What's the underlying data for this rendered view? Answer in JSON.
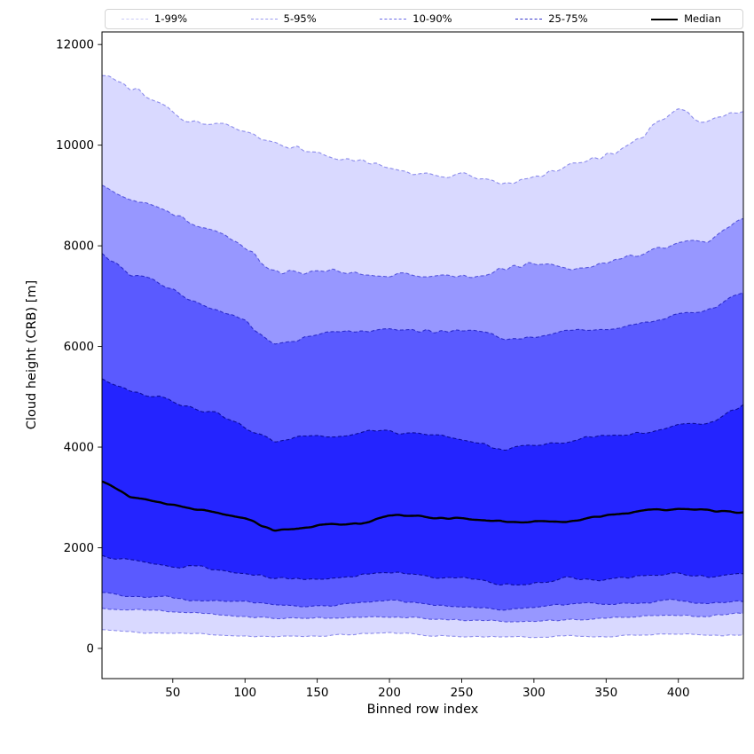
{
  "chart_data": {
    "type": "area",
    "title": "",
    "xlabel": "Binned row index",
    "ylabel": "Cloud height (CRB) [m]",
    "xlim": [
      1,
      445
    ],
    "ylim": [
      -600,
      12250
    ],
    "xticks": [
      50,
      100,
      150,
      200,
      250,
      300,
      350,
      400
    ],
    "yticks": [
      0,
      2000,
      4000,
      6000,
      8000,
      10000,
      12000
    ],
    "grid": false,
    "legend_position": "top",
    "legend": [
      {
        "label": "1-99%",
        "line_style": "dashed",
        "color": "#c9c9f6",
        "weight": 1.5
      },
      {
        "label": "5-95%",
        "line_style": "dashed",
        "color": "#9a9af0",
        "weight": 1.5
      },
      {
        "label": "10-90%",
        "line_style": "dashed",
        "color": "#6a6ae8",
        "weight": 1.5
      },
      {
        "label": "25-75%",
        "line_style": "dashed",
        "color": "#3434cc",
        "weight": 1.5
      },
      {
        "label": "Median",
        "line_style": "solid",
        "color": "#000000",
        "weight": 2.5
      }
    ],
    "band_fill_color": "#0000ff",
    "bands": [
      {
        "name": "1-99%",
        "lower": "p1",
        "upper": "p99",
        "fill_alpha": 0.15,
        "edge_color": "rgba(45,45,215,0.50)"
      },
      {
        "name": "5-95%",
        "lower": "p5",
        "upper": "p95",
        "fill_alpha": 0.3,
        "edge_color": "rgba(35,35,205,0.65)"
      },
      {
        "name": "10-90%",
        "lower": "p10",
        "upper": "p90",
        "fill_alpha": 0.4,
        "edge_color": "rgba(25,25,190,0.80)"
      },
      {
        "name": "25-75%",
        "lower": "p25",
        "upper": "p75",
        "fill_alpha": 0.6,
        "edge_color": "rgba(10,10,150,0.95)"
      }
    ],
    "median_color": "#000000",
    "x_control": [
      1,
      20,
      40,
      60,
      80,
      100,
      120,
      140,
      160,
      180,
      200,
      220,
      240,
      260,
      280,
      300,
      320,
      340,
      360,
      380,
      400,
      420,
      445
    ],
    "series": {
      "p99": [
        11500,
        11100,
        10850,
        10500,
        10450,
        10250,
        10000,
        9900,
        9800,
        9650,
        9550,
        9450,
        9400,
        9350,
        9300,
        9350,
        9500,
        9700,
        9950,
        10300,
        10700,
        10550,
        10650
      ],
      "p95": [
        9200,
        8900,
        8750,
        8500,
        8300,
        7950,
        7500,
        7400,
        7450,
        7400,
        7400,
        7450,
        7450,
        7400,
        7500,
        7600,
        7500,
        7550,
        7700,
        7900,
        8100,
        8100,
        8450
      ],
      "p90": [
        7850,
        7500,
        7350,
        7000,
        6800,
        6500,
        6100,
        6150,
        6250,
        6300,
        6350,
        6300,
        6250,
        6300,
        6150,
        6200,
        6250,
        6250,
        6300,
        6500,
        6700,
        6750,
        7050
      ],
      "p75": [
        5400,
        5150,
        5000,
        4800,
        4700,
        4400,
        4100,
        4200,
        4250,
        4300,
        4350,
        4300,
        4200,
        4100,
        4000,
        4050,
        4100,
        4200,
        4250,
        4300,
        4450,
        4500,
        4850
      ],
      "median": [
        3350,
        3000,
        2880,
        2780,
        2700,
        2600,
        2350,
        2400,
        2450,
        2450,
        2650,
        2650,
        2600,
        2550,
        2500,
        2500,
        2550,
        2600,
        2650,
        2750,
        2800,
        2750,
        2700
      ],
      "p25": [
        1800,
        1720,
        1680,
        1620,
        1560,
        1500,
        1400,
        1400,
        1420,
        1450,
        1500,
        1450,
        1400,
        1350,
        1300,
        1300,
        1350,
        1350,
        1400,
        1450,
        1500,
        1450,
        1500
      ],
      "p10": [
        1100,
        1050,
        1000,
        960,
        950,
        900,
        850,
        850,
        860,
        900,
        950,
        900,
        870,
        850,
        800,
        810,
        840,
        860,
        890,
        900,
        950,
        900,
        950
      ],
      "p5": [
        800,
        760,
        730,
        700,
        680,
        640,
        600,
        610,
        620,
        640,
        650,
        630,
        600,
        580,
        550,
        560,
        580,
        590,
        600,
        620,
        650,
        640,
        680
      ],
      "p1": [
        350,
        330,
        310,
        300,
        290,
        270,
        250,
        255,
        260,
        270,
        280,
        265,
        250,
        235,
        220,
        225,
        235,
        240,
        250,
        260,
        280,
        270,
        280
      ]
    },
    "noise_amplitude": {
      "p1": 28,
      "p5": 32,
      "p10": 38,
      "p25": 48,
      "median": 34,
      "p75": 62,
      "p90": 78,
      "p95": 88,
      "p99": 105
    }
  }
}
